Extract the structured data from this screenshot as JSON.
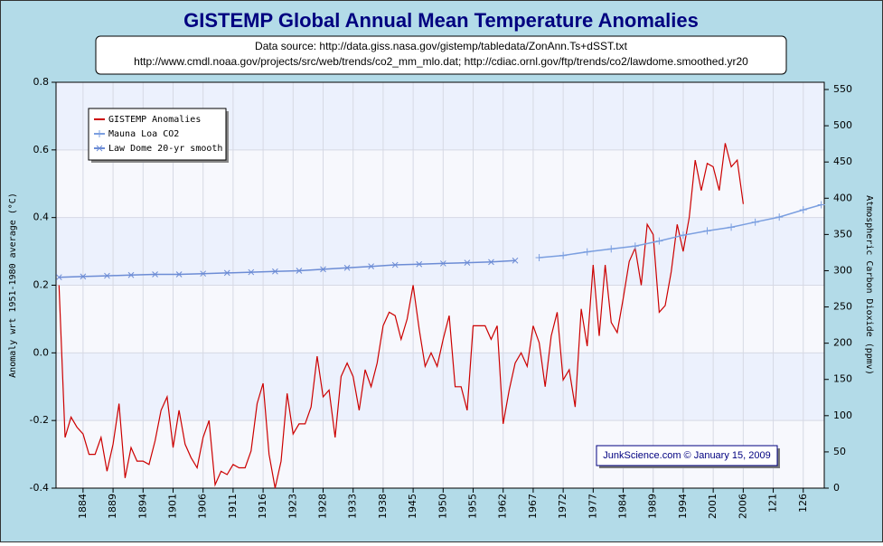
{
  "chart_data": {
    "type": "line",
    "title": "GISTEMP Global Annual Mean Temperature Anomalies",
    "subtitle": [
      "Data source: http://data.giss.nasa.gov/gistemp/tabledata/ZonAnn.Ts+dSST.txt",
      "http://www.cmdl.noaa.gov/projects/src/web/trends/co2_mm_mlo.dat; http://cdiac.ornl.gov/ftp/trends/co2/lawdome.smoothed.yr20"
    ],
    "annotation": "JunkScience.com © January 15, 2009",
    "ylabel": "Anomaly wrt 1951-1980 average (°C)",
    "y2label": "Atmospheric Carbon Dioxide (ppmv)",
    "xlim": [
      0.5,
      128.5
    ],
    "xticks": [
      {
        "value": 5,
        "label": "1884"
      },
      {
        "value": 10,
        "label": "1889"
      },
      {
        "value": 15,
        "label": "1894"
      },
      {
        "value": 20,
        "label": "1901"
      },
      {
        "value": 25,
        "label": "1906"
      },
      {
        "value": 30,
        "label": "1911"
      },
      {
        "value": 35,
        "label": "1916"
      },
      {
        "value": 40,
        "label": "1923"
      },
      {
        "value": 45,
        "label": "1928"
      },
      {
        "value": 50,
        "label": "1933"
      },
      {
        "value": 55,
        "label": "1938"
      },
      {
        "value": 60,
        "label": "1945"
      },
      {
        "value": 65,
        "label": "1950"
      },
      {
        "value": 70,
        "label": "1955"
      },
      {
        "value": 75,
        "label": "1962"
      },
      {
        "value": 80,
        "label": "1967"
      },
      {
        "value": 85,
        "label": "1972"
      },
      {
        "value": 90,
        "label": "1977"
      },
      {
        "value": 95,
        "label": "1984"
      },
      {
        "value": 100,
        "label": "1989"
      },
      {
        "value": 105,
        "label": "1994"
      },
      {
        "value": 110,
        "label": "2001"
      },
      {
        "value": 115,
        "label": "2006"
      },
      {
        "value": 120,
        "label": "121"
      },
      {
        "value": 125,
        "label": "126"
      }
    ],
    "ylim": [
      -0.4,
      0.8
    ],
    "yticks": [
      -0.4,
      -0.2,
      {
        "value": 0,
        "label": "0.0"
      },
      0.2,
      0.4,
      0.6,
      0.8
    ],
    "y2lim": [
      0,
      560
    ],
    "y2ticks": [
      0,
      50,
      100,
      150,
      200,
      250,
      300,
      350,
      400,
      450,
      500,
      550
    ],
    "grid": true,
    "legend": "upper left",
    "series": [
      {
        "name": "GISTEMP Anomalies",
        "color": "#cc0000",
        "axis": "y",
        "x": [
          1,
          2,
          3,
          4,
          5,
          6,
          7,
          8,
          9,
          10,
          11,
          12,
          13,
          14,
          15,
          16,
          17,
          18,
          19,
          20,
          21,
          22,
          23,
          24,
          25,
          26,
          27,
          28,
          29,
          30,
          31,
          32,
          33,
          34,
          35,
          36,
          37,
          38,
          39,
          40,
          41,
          42,
          43,
          44,
          45,
          46,
          47,
          48,
          49,
          50,
          51,
          52,
          53,
          54,
          55,
          56,
          57,
          58,
          59,
          60,
          61,
          62,
          63,
          64,
          65,
          66,
          67,
          68,
          69,
          70,
          71,
          72,
          73,
          74,
          75,
          76,
          77,
          78,
          79,
          80,
          81,
          82,
          83,
          84,
          85,
          86,
          87,
          88,
          89,
          90,
          91,
          92,
          93,
          94,
          95,
          96,
          97,
          98,
          99,
          100,
          101,
          102,
          103,
          104,
          105,
          106,
          107,
          108,
          109,
          110,
          111,
          112,
          113,
          114,
          115
        ],
        "values": [
          0.2,
          -0.25,
          -0.19,
          -0.22,
          -0.24,
          -0.3,
          -0.3,
          -0.25,
          -0.35,
          -0.27,
          -0.15,
          -0.37,
          -0.28,
          -0.32,
          -0.32,
          -0.33,
          -0.26,
          -0.17,
          -0.13,
          -0.28,
          -0.17,
          -0.27,
          -0.31,
          -0.34,
          -0.25,
          -0.2,
          -0.39,
          -0.35,
          -0.36,
          -0.33,
          -0.34,
          -0.34,
          -0.29,
          -0.15,
          -0.09,
          -0.3,
          -0.4,
          -0.32,
          -0.12,
          -0.24,
          -0.21,
          -0.21,
          -0.16,
          -0.01,
          -0.13,
          -0.11,
          -0.25,
          -0.07,
          -0.03,
          -0.07,
          -0.17,
          -0.05,
          -0.1,
          -0.03,
          0.08,
          0.12,
          0.11,
          0.04,
          0.1,
          0.2,
          0.07,
          -0.04,
          0,
          -0.04,
          0.04,
          0.11,
          -0.1,
          -0.1,
          -0.17,
          0.08,
          0.08,
          0.08,
          0.04,
          0.08,
          -0.21,
          -0.11,
          -0.03,
          0,
          -0.04,
          0.08,
          0.03,
          -0.1,
          0.05,
          0.12,
          -0.08,
          -0.05,
          -0.16,
          0.13,
          0.02,
          0.26,
          0.05,
          0.26,
          0.09,
          0.06,
          0.16,
          0.27,
          0.31,
          0.2,
          0.38,
          0.35,
          0.12,
          0.14,
          0.24,
          0.38,
          0.3,
          0.4,
          0.57,
          0.48,
          0.56,
          0.55,
          0.48,
          0.62,
          0.55,
          0.57,
          0.44
        ]
      },
      {
        "name": "Mauna Loa CO2",
        "color": "#7b9fe0",
        "axis": "y2",
        "marker": "plus",
        "x": [
          81,
          85,
          89,
          93,
          97,
          101,
          105,
          109,
          113,
          117,
          121,
          125,
          128
        ],
        "values": [
          318,
          321,
          326,
          330,
          334,
          341,
          349,
          355,
          360,
          367,
          374,
          384,
          391
        ]
      },
      {
        "name": "Law Dome 20-yr smooth",
        "color": "#6c8cd5",
        "axis": "y2",
        "marker": "cross",
        "x": [
          1,
          5,
          9,
          13,
          17,
          21,
          25,
          29,
          33,
          37,
          41,
          45,
          49,
          53,
          57,
          61,
          65,
          69,
          73,
          77
        ],
        "values": [
          291,
          292,
          293,
          294,
          295,
          295,
          296,
          297,
          298,
          299,
          300,
          302,
          304,
          306,
          308,
          309,
          310,
          311,
          312,
          314
        ]
      }
    ]
  }
}
